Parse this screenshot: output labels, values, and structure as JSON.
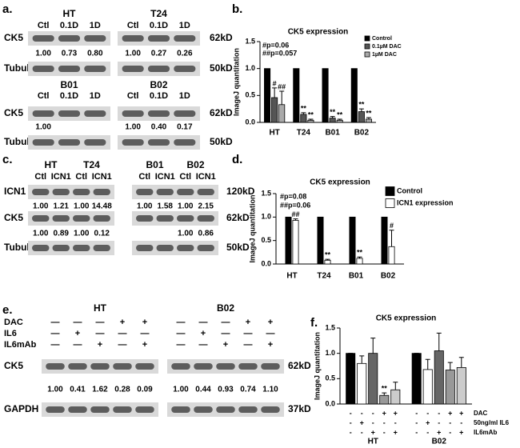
{
  "chart_data": [
    {
      "type": "bar",
      "panel": "b.",
      "title": "CK5 expression",
      "ylabel": "ImageJ quantitation",
      "categories": [
        "HT",
        "T24",
        "B01",
        "B02"
      ],
      "series": [
        {
          "name": "Control",
          "color": "#000000",
          "values": [
            1,
            1,
            1,
            1
          ]
        },
        {
          "name": "0.1µM DAC",
          "color": "#555555",
          "values": [
            0.46,
            0.15,
            0.08,
            0.2
          ],
          "errors": [
            0.18,
            0.03,
            0.03,
            0.05
          ],
          "sig": [
            "#",
            "**",
            "**",
            "**"
          ]
        },
        {
          "name": "1µM DAC",
          "color": "#aaaaaa",
          "values": [
            0.33,
            0.04,
            0.04,
            0.06
          ],
          "errors": [
            0.25,
            0.02,
            0.02,
            0.03
          ],
          "sig": [
            "##",
            "**",
            "**",
            "**"
          ]
        }
      ],
      "ylim": [
        0,
        1.5
      ],
      "yticks": [
        {
          "value": 0,
          "label": "0.0"
        },
        {
          "value": 0.5,
          "label": "0.5"
        },
        {
          "value": 1,
          "label": "1.0"
        },
        {
          "value": 1.5,
          "label": "1.5"
        }
      ],
      "legend": "upper right",
      "annotations": [
        "#p=0.06",
        "##p=0.057"
      ]
    },
    {
      "type": "bar",
      "panel": "d.",
      "title": "CK5 expression",
      "ylabel": "ImageJ quantitation",
      "categories": [
        "HT",
        "T24",
        "B01",
        "B02"
      ],
      "series": [
        {
          "name": "Control",
          "color": "#000000",
          "values": [
            1,
            1,
            1,
            1
          ]
        },
        {
          "name": "ICN1 expression",
          "color": "#ffffff",
          "values": [
            0.93,
            0.08,
            0.12,
            0.37
          ],
          "errors": [
            0.03,
            0.02,
            0.03,
            0.35
          ],
          "sig": [
            "##",
            "**",
            "**",
            "#"
          ]
        }
      ],
      "ylim": [
        0,
        1.5
      ],
      "yticks": [
        {
          "value": 0,
          "label": "0.0"
        },
        {
          "value": 0.5,
          "label": "0.5"
        },
        {
          "value": 1,
          "label": "1.0"
        },
        {
          "value": 1.5,
          "label": "1.5"
        }
      ],
      "legend": "upper right",
      "annotations": [
        "#p=0.08",
        "##p=0.06"
      ]
    },
    {
      "type": "bar",
      "panel": "f.",
      "title": "CK5 expression",
      "ylabel": "ImageJ quantitation",
      "categories": [
        "HT",
        "B02"
      ],
      "series": [
        {
          "color": "#000000",
          "values": [
            1,
            1
          ],
          "errors": [
            0,
            0
          ]
        },
        {
          "color": "#ffffff",
          "values": [
            0.8,
            0.68
          ],
          "errors": [
            0.15,
            0.2
          ]
        },
        {
          "color": "#666666",
          "values": [
            1,
            1.05
          ],
          "errors": [
            0.3,
            0.35
          ]
        },
        {
          "color": "#999999",
          "values": [
            0.17,
            0.67
          ],
          "errors": [
            0.05,
            0.15
          ],
          "sig": [
            "**",
            null
          ]
        },
        {
          "color": "#cccccc",
          "values": [
            0.28,
            0.72
          ],
          "errors": [
            0.15,
            0.2
          ]
        }
      ],
      "ylim": [
        0,
        1.5
      ],
      "yticks": [
        {
          "value": 0,
          "label": "0.0"
        },
        {
          "value": 0.5,
          "label": "0.5"
        },
        {
          "value": 1,
          "label": "1.0"
        },
        {
          "value": 1.5,
          "label": "1.5"
        }
      ],
      "conditions": [
        {
          "label": "DAC",
          "signs": [
            [
              "-",
              "-",
              "-",
              "+",
              "+"
            ],
            [
              "-",
              "-",
              "-",
              "+",
              "+"
            ]
          ]
        },
        {
          "label": "50ng/ml IL6",
          "signs": [
            [
              "-",
              "+",
              "-",
              "-",
              "-"
            ],
            [
              "-",
              "+",
              "-",
              "-",
              "-"
            ]
          ]
        },
        {
          "label": "IL6mAb",
          "signs": [
            [
              "-",
              "-",
              "+",
              "-",
              "+"
            ],
            [
              "-",
              "-",
              "+",
              "-",
              "+"
            ]
          ]
        }
      ]
    }
  ],
  "blots": [
    {
      "panel": "a.",
      "groups": [
        {
          "rows": [
            {
              "label": "CK5",
              "size": "62kD"
            },
            {
              "label": "Tubulin",
              "size": "50kD"
            }
          ],
          "blocks": [
            {
              "titles": [
                "HT"
              ],
              "lanes": [
                "Ctl",
                "0.1D",
                "1D"
              ],
              "quant": [
                [
                  "1.00",
                  "0.73",
                  "0.80"
                ]
              ]
            },
            {
              "titles": [
                "T24"
              ],
              "lanes": [
                "Ctl",
                "0.1D",
                "1D"
              ],
              "quant": [
                [
                  "1.00",
                  "0.27",
                  "0.26"
                ]
              ]
            }
          ]
        },
        {
          "rows": [
            {
              "label": "CK5",
              "size": "62kD"
            },
            {
              "label": "Tubulin",
              "size": "50kD"
            }
          ],
          "blocks": [
            {
              "titles": [
                "B01"
              ],
              "lanes": [
                "Ctl",
                "0.1D",
                "1D"
              ],
              "quant": [
                [
                  "1.00",
                  null,
                  null
                ]
              ]
            },
            {
              "titles": [
                "B02"
              ],
              "lanes": [
                "Ctl",
                "0.1D",
                "1D"
              ],
              "quant": [
                [
                  "1.00",
                  "0.40",
                  "0.17"
                ]
              ]
            }
          ]
        }
      ]
    },
    {
      "panel": "c.",
      "groups": [
        {
          "rows": [
            {
              "label": "ICN1",
              "size": "120kD"
            },
            {
              "label": "CK5",
              "size": "62kD"
            },
            {
              "label": "Tubulin",
              "size": "50kD"
            }
          ],
          "blocks": [
            {
              "titles": [
                "HT",
                "T24"
              ],
              "lanes": [
                "Ctl",
                "ICN1",
                "Ctl",
                "ICN1"
              ],
              "quant": [
                [
                  "1.00",
                  "1.21",
                  "1.00",
                  "14.48"
                ],
                [
                  "1.00",
                  "0.89",
                  "1.00",
                  "0.12"
                ]
              ]
            },
            {
              "titles": [
                "B01",
                "B02"
              ],
              "lanes": [
                "Ctl",
                "ICN1",
                "Ctl",
                "ICN1"
              ],
              "quant": [
                [
                  "1.00",
                  "1.58",
                  "1.00",
                  "2.15"
                ],
                [
                  null,
                  null,
                  "1.00",
                  "0.86"
                ]
              ]
            }
          ]
        }
      ]
    },
    {
      "panel": "e.",
      "groups": [
        {
          "rows": [
            {
              "label": "CK5",
              "size": "62kD"
            },
            {
              "label": "GAPDH",
              "size": "37kD"
            }
          ],
          "treatments": [
            "DAC",
            "IL6",
            "IL6mAb"
          ],
          "blocks": [
            {
              "titles": [
                "HT"
              ],
              "signs": [
                [
                  "—",
                  "—",
                  "—",
                  "+",
                  "+"
                ],
                [
                  "—",
                  "+",
                  "—",
                  "—",
                  "—"
                ],
                [
                  "—",
                  "—",
                  "+",
                  "—",
                  "+"
                ]
              ],
              "quant": [
                [
                  "1.00",
                  "0.41",
                  "1.62",
                  "0.28",
                  "0.09"
                ]
              ]
            },
            {
              "titles": [
                "B02"
              ],
              "signs": [
                [
                  "—",
                  "—",
                  "—",
                  "+",
                  "+"
                ],
                [
                  "—",
                  "+",
                  "—",
                  "—",
                  "—"
                ],
                [
                  "—",
                  "—",
                  "+",
                  "—",
                  "+"
                ]
              ],
              "quant": [
                [
                  "1.00",
                  "0.44",
                  "0.93",
                  "0.74",
                  "1.10"
                ]
              ]
            }
          ]
        }
      ]
    }
  ]
}
